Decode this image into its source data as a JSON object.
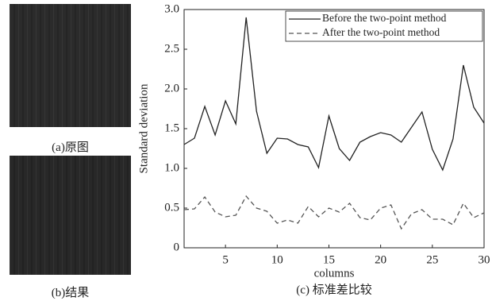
{
  "panels": [
    {
      "caption": "(a)原图"
    },
    {
      "caption": "(b)结果"
    }
  ],
  "chart_data": {
    "type": "line",
    "caption": "(c) 标准差比较",
    "x_label": "columns",
    "y_label": "Standard deviation",
    "x": [
      1,
      2,
      3,
      4,
      5,
      6,
      7,
      8,
      9,
      10,
      11,
      12,
      13,
      14,
      15,
      16,
      17,
      18,
      19,
      20,
      21,
      22,
      23,
      24,
      25,
      26,
      27,
      28,
      29,
      30
    ],
    "series": [
      {
        "name": "Before the two-point method",
        "color": "#222222",
        "style": "solid",
        "values": [
          1.3,
          1.38,
          1.78,
          1.42,
          1.85,
          1.56,
          2.9,
          1.72,
          1.19,
          1.38,
          1.37,
          1.3,
          1.27,
          1.01,
          1.66,
          1.25,
          1.1,
          1.33,
          1.4,
          1.45,
          1.42,
          1.33,
          1.52,
          1.71,
          1.24,
          0.98,
          1.37,
          2.3,
          1.77,
          1.57
        ]
      },
      {
        "name": "After the two-point method",
        "color": "#555555",
        "style": "dashed",
        "values": [
          0.48,
          0.49,
          0.64,
          0.45,
          0.39,
          0.41,
          0.65,
          0.5,
          0.46,
          0.31,
          0.35,
          0.31,
          0.52,
          0.39,
          0.5,
          0.45,
          0.56,
          0.38,
          0.35,
          0.5,
          0.54,
          0.24,
          0.43,
          0.48,
          0.36,
          0.36,
          0.29,
          0.56,
          0.38,
          0.44
        ]
      }
    ],
    "xlim": [
      1,
      30
    ],
    "xticks": [
      5,
      10,
      15,
      20,
      25,
      30
    ],
    "ylim": [
      0,
      3
    ],
    "yticks": [
      0,
      0.5,
      {
        "value": 1,
        "label": "1.0"
      },
      1.5,
      {
        "value": 2,
        "label": "2.0"
      },
      2.5,
      {
        "value": 3,
        "label": "3.0"
      }
    ],
    "legend": "upper right"
  }
}
